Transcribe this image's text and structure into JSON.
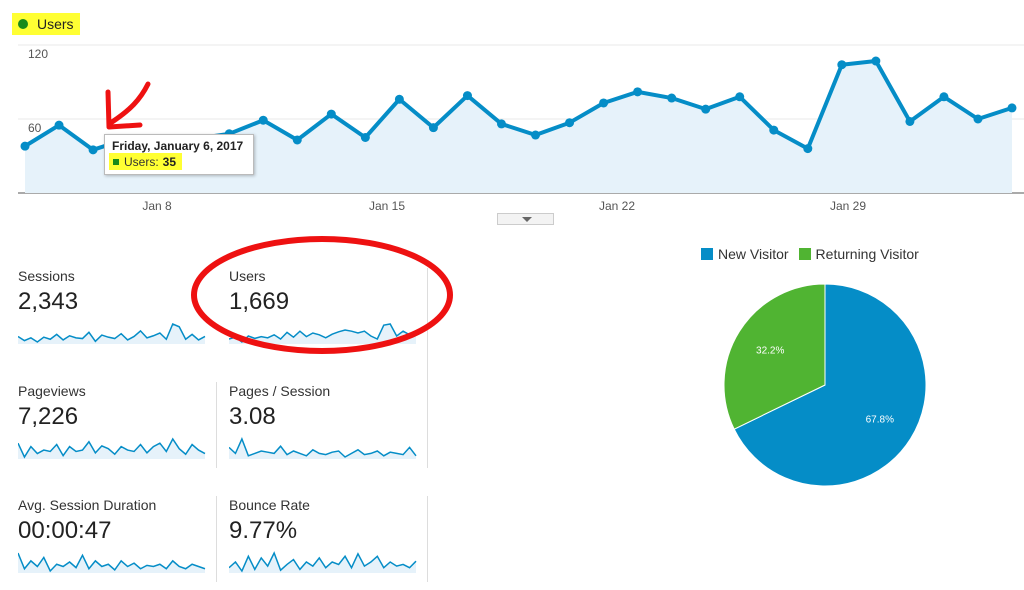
{
  "legend": {
    "metric": "Users",
    "dot_color": "#1a8a1a"
  },
  "chart_data": [
    {
      "type": "line",
      "series": [
        {
          "name": "Users",
          "color": "#058dc7",
          "values": [
            38,
            55,
            35,
            44,
            42,
            44,
            48,
            59,
            43,
            64,
            45,
            76,
            53,
            79,
            56,
            47,
            57,
            73,
            82,
            77,
            68,
            78,
            51,
            36,
            104,
            107,
            58,
            78,
            60,
            69
          ]
        }
      ],
      "x": [
        "Jan 4",
        "Jan 5",
        "Jan 6",
        "Jan 7",
        "Jan 8",
        "Jan 9",
        "Jan 10",
        "Jan 11",
        "Jan 12",
        "Jan 13",
        "Jan 14",
        "Jan 15",
        "Jan 16",
        "Jan 17",
        "Jan 18",
        "Jan 19",
        "Jan 20",
        "Jan 21",
        "Jan 22",
        "Jan 23",
        "Jan 24",
        "Jan 25",
        "Jan 26",
        "Jan 27",
        "Jan 28",
        "Jan 29",
        "Jan 30",
        "Jan 31",
        "Feb 1",
        "Feb 2"
      ],
      "x_ticks": [
        "Jan 8",
        "Jan 15",
        "Jan 22",
        "Jan 29"
      ],
      "y_ticks": [
        "120",
        "60"
      ],
      "ylim": [
        0,
        120
      ],
      "fill_color": "#e6f2fa"
    },
    {
      "type": "pie",
      "categories": [
        "New Visitor",
        "Returning Visitor"
      ],
      "values": [
        67.8,
        32.2
      ],
      "labels": [
        "67.8%",
        "32.2%"
      ],
      "colors": [
        "#058dc7",
        "#50b432"
      ],
      "legend_position": "top"
    }
  ],
  "tooltip": {
    "date": "Friday, January 6, 2017",
    "label": "Users:",
    "value": "35"
  },
  "metrics": [
    {
      "label": "Sessions",
      "value": "2,343",
      "spark": [
        52,
        46,
        50,
        44,
        51,
        48,
        55,
        47,
        53,
        50,
        49,
        58,
        45,
        54,
        51,
        49,
        56,
        47,
        52,
        60,
        50,
        53,
        57,
        48,
        70,
        66,
        48,
        55,
        47,
        52
      ]
    },
    {
      "label": "Users",
      "value": "1,669",
      "spark": [
        45,
        48,
        40,
        50,
        46,
        49,
        47,
        52,
        45,
        56,
        48,
        58,
        49,
        55,
        52,
        47,
        53,
        57,
        60,
        58,
        55,
        58,
        50,
        45,
        68,
        70,
        50,
        58,
        52,
        56
      ]
    },
    {
      "label": "Pageviews",
      "value": "7,226",
      "spark": [
        60,
        40,
        55,
        45,
        50,
        48,
        58,
        42,
        55,
        48,
        50,
        62,
        46,
        56,
        52,
        44,
        55,
        50,
        48,
        58,
        46,
        55,
        60,
        48,
        66,
        52,
        44,
        58,
        50,
        45
      ]
    },
    {
      "label": "Pages / Session",
      "value": "3.08",
      "spark": [
        55,
        50,
        62,
        48,
        50,
        52,
        51,
        50,
        56,
        49,
        52,
        50,
        48,
        53,
        50,
        49,
        51,
        52,
        47,
        50,
        53,
        49,
        50,
        52,
        48,
        51,
        50,
        49,
        55,
        48
      ]
    },
    {
      "label": "Avg. Session Duration",
      "value": "00:00:47",
      "spark": [
        62,
        48,
        55,
        50,
        58,
        46,
        52,
        50,
        54,
        49,
        60,
        48,
        55,
        50,
        52,
        47,
        55,
        50,
        53,
        48,
        51,
        50,
        52,
        48,
        55,
        50,
        48,
        52,
        50,
        48
      ]
    },
    {
      "label": "Bounce Rate",
      "value": "9.77%",
      "spark": [
        48,
        55,
        44,
        62,
        46,
        60,
        50,
        66,
        45,
        52,
        58,
        46,
        55,
        50,
        60,
        48,
        55,
        52,
        62,
        48,
        65,
        50,
        55,
        62,
        48,
        55,
        50,
        52,
        48,
        56
      ]
    }
  ],
  "spark_color": "#058dc7",
  "spark_fill": "#e6f2fa"
}
